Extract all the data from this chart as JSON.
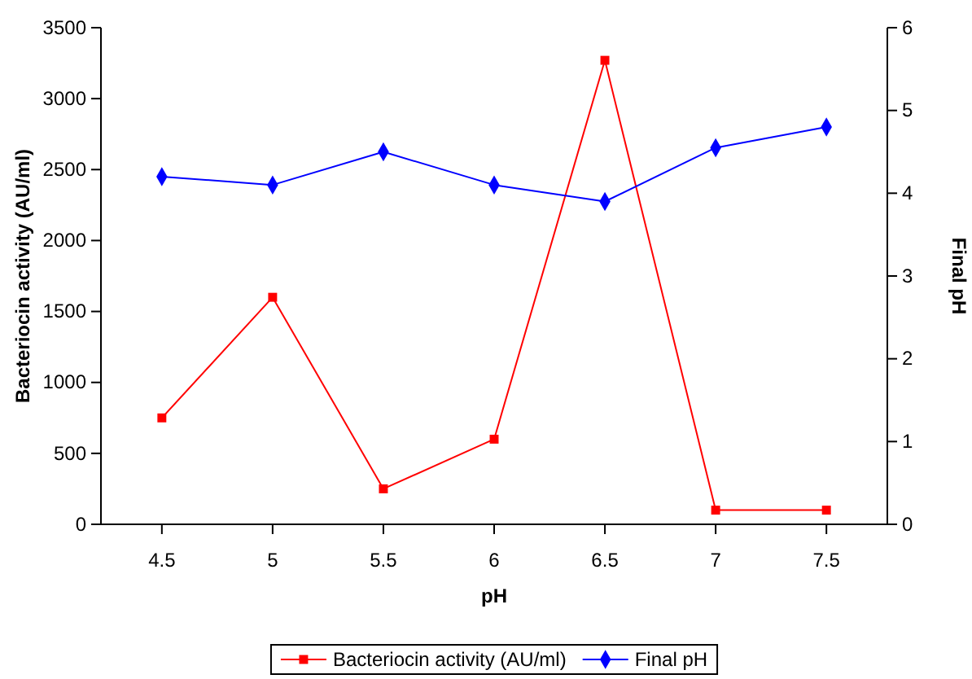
{
  "chart_data": {
    "type": "line",
    "xlabel": "pH",
    "ylabel": "Bacteriocin activity (AU/ml)",
    "y2label": "Final pH",
    "categories": [
      "4.5",
      "5",
      "5.5",
      "6",
      "6.5",
      "7",
      "7.5"
    ],
    "series": [
      {
        "name": "Bacteriocin activity (AU/ml)",
        "color": "#ff0000",
        "marker": "square",
        "values": [
          750,
          1600,
          250,
          600,
          3270,
          100,
          100
        ]
      },
      {
        "name": "Final pH",
        "color": "#0000ff",
        "marker": "diamond",
        "axis": "y2",
        "values": [
          4.2,
          4.1,
          4.5,
          4.1,
          3.9,
          4.55,
          4.8
        ]
      }
    ],
    "ylim": [
      0,
      3500
    ],
    "yticks": [
      0,
      500,
      1000,
      1500,
      2000,
      2500,
      3000,
      3500
    ],
    "y2lim": [
      0,
      6
    ],
    "y2ticks": [
      0,
      1,
      2,
      3,
      4,
      5,
      6
    ],
    "grid": false,
    "legend": "bottom",
    "line_style": "solid"
  }
}
